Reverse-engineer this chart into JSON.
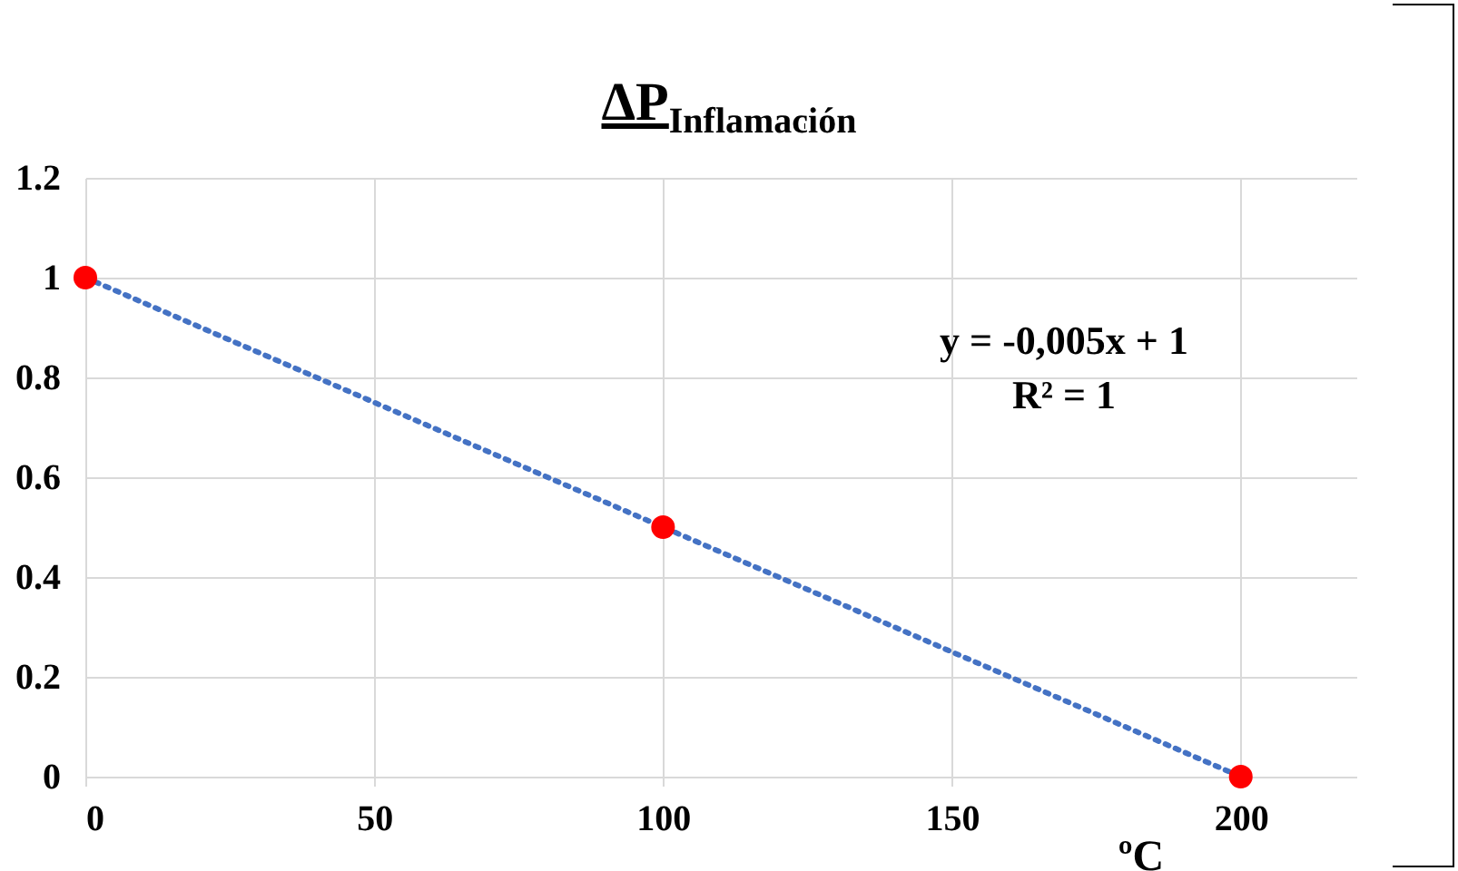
{
  "chart_data": {
    "type": "scatter",
    "title": "ΔP$_{Inflamación}$",
    "xlabel": "ºC",
    "annotations": [
      "y = -0,005x + 1",
      "R² = 1"
    ],
    "x": [
      0,
      100,
      200
    ],
    "series": [
      {
        "type": "line",
        "color": "#4472c4",
        "x": [
          0,
          200
        ],
        "values": [
          1,
          0
        ],
        "line_style": "dotted"
      },
      {
        "type": "scatter",
        "color": "#ff0000",
        "values": [
          1,
          0.5,
          0
        ],
        "marker": "circle"
      }
    ],
    "xlim": [
      0,
      220
    ],
    "xticks": [
      0,
      50,
      100,
      150,
      200
    ],
    "ylim": [
      0,
      1.2
    ],
    "yticks": [
      0,
      0.2,
      0.4,
      0.6,
      0.8,
      1,
      1.2
    ],
    "grid": true
  }
}
